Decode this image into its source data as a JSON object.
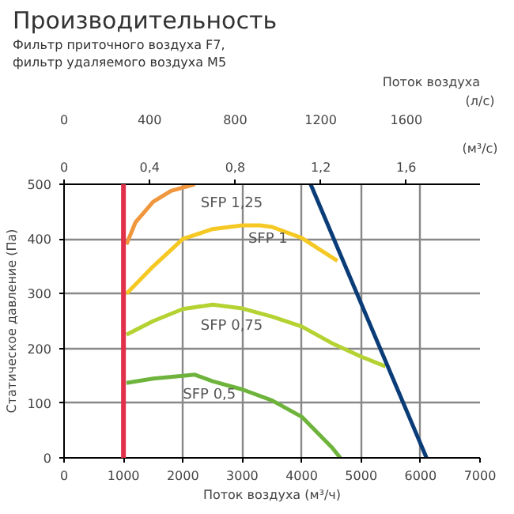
{
  "chart_data": {
    "type": "line",
    "title": "Производительность",
    "subtitle": "Фильтр приточного воздуха F7,\nфильтр удаляемого воздуха M5",
    "xlabel": "Поток воздуха (м³/ч)",
    "ylabel": "Статическое давление (Па)",
    "x2label": "(л/с)",
    "annotations": [
      "Поток воздуха",
      "(м³/с)",
      "0",
      "0,4",
      "0,8",
      "1,2",
      "1,6"
    ],
    "xlim": [
      0,
      7000
    ],
    "xticks": [
      0,
      1000,
      2000,
      3000,
      4000,
      5000,
      6000,
      7000
    ],
    "ylim": [
      0,
      500
    ],
    "yticks": [
      0,
      100,
      200,
      300,
      400,
      500
    ],
    "x2lim": [
      0,
      1944.4
    ],
    "x2ticks": [
      0,
      400,
      800,
      1200,
      1600
    ],
    "grid": true,
    "legend": false,
    "marker": "none",
    "line_style": "solid",
    "ref_lines": [
      {
        "axis": "x",
        "value": 1000,
        "color": "#e0304a"
      }
    ],
    "series": [
      {
        "name": "SFP 1,25",
        "color": "#f0963c",
        "x": [
          1050,
          1200,
          1500,
          1800,
          2200
        ],
        "values": [
          390,
          430,
          468,
          488,
          500
        ]
      },
      {
        "name": "SFP 1",
        "color": "#f5c823",
        "x": [
          1050,
          1500,
          2000,
          2500,
          3000,
          3300,
          3500,
          4000,
          4600
        ],
        "values": [
          300,
          350,
          400,
          418,
          425,
          425,
          422,
          402,
          360
        ]
      },
      {
        "name": "SFP 0,75",
        "color": "#b4d232",
        "x": [
          1050,
          1500,
          2000,
          2500,
          3000,
          3500,
          4000,
          4500,
          5000,
          5410
        ],
        "values": [
          225,
          250,
          272,
          280,
          273,
          258,
          240,
          210,
          185,
          167
        ]
      },
      {
        "name": "SFP 0,5",
        "color": "#6eb43c",
        "x": [
          1050,
          1500,
          2000,
          2200,
          2500,
          3000,
          3500,
          4000,
          4500,
          4650
        ],
        "values": [
          137,
          145,
          150,
          152,
          140,
          125,
          105,
          75,
          20,
          0
        ]
      },
      {
        "color": "#0a3c78",
        "x": [
          4150,
          6100
        ],
        "values": [
          500,
          0
        ]
      }
    ]
  }
}
